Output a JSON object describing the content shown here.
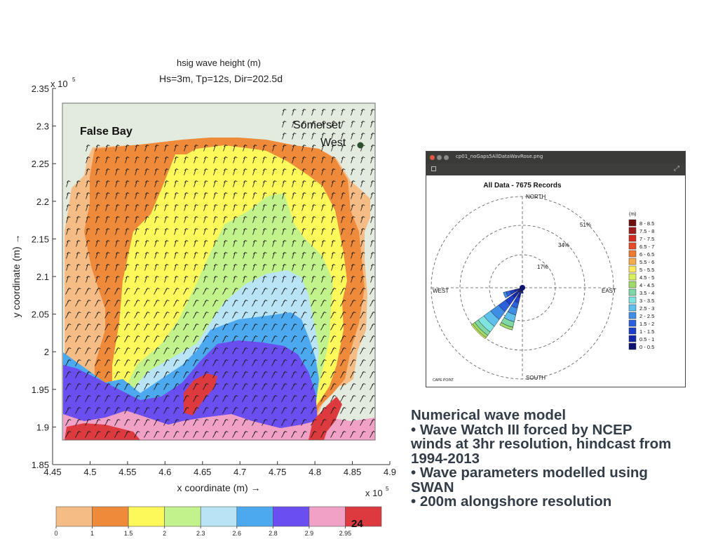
{
  "chart_data": [
    {
      "type": "heatmap",
      "title": "hsig wave height (m)",
      "subtitle": "Hs=3m, Tp=12s, Dir=202.5d",
      "xlabel": "x coordinate (m) →",
      "ylabel": "y coordinate (m) →",
      "x_multiplier": "x 10",
      "x_multiplier_exp": "5",
      "y_multiplier": "x 10",
      "y_multiplier_exp": "5",
      "xlim": [
        4.46,
        4.9
      ],
      "ylim": [
        1.85,
        2.35
      ],
      "x_ticks": [
        "4.45",
        "4.5",
        "4.55",
        "4.6",
        "4.65",
        "4.7",
        "4.75",
        "4.8",
        "4.85",
        "4.9"
      ],
      "y_ticks": [
        "2.35",
        "2.3",
        "2.25",
        "2.2",
        "2.15",
        "2.1",
        "2.05",
        "2",
        "1.95",
        "1.9",
        "1.85"
      ],
      "annotations": {
        "bay": "False Bay",
        "town_line1": "Somerset",
        "town_line2": "West"
      },
      "colorbar": {
        "labels": [
          "0",
          "1",
          "1.5",
          "2",
          "2.3",
          "2.6",
          "2.8",
          "2.9",
          "2.95"
        ],
        "overlay_text": "24",
        "colors": [
          "#f5bd85",
          "#ee8a3a",
          "#fef95a",
          "#c2f28c",
          "#b8e4f6",
          "#4ca9ef",
          "#6a4ef0",
          "#f1a1c5",
          "#dc3a3f"
        ]
      },
      "colors": {
        "land": "#e3ebdf",
        "band_1": "#f5bd85",
        "band_1_5": "#ee8a3a",
        "band_2": "#fef95a",
        "band_2_3": "#c2f28c",
        "band_2_6": "#b8e4f6",
        "band_2_8": "#4ca9ef",
        "band_2_9": "#6a4ef0",
        "band_2_95": "#f1a1c5",
        "band_max": "#dc3a3f"
      }
    },
    {
      "type": "rose",
      "title": "All Data - 7675 Records",
      "north": "NORTH",
      "south": "SOUTH",
      "east": "EAST",
      "west": "WEST",
      "ring_labels": [
        "17%",
        "34%",
        "51%"
      ],
      "site_label": "CAPE POINT",
      "legend_title": "(m)",
      "legend": [
        {
          "label": "8 - 8.5",
          "color": "#6e0f10"
        },
        {
          "label": "7.5 - 8",
          "color": "#a11c1c"
        },
        {
          "label": "7 - 7.5",
          "color": "#d42a22"
        },
        {
          "label": "6.5 - 7",
          "color": "#e84a2a"
        },
        {
          "label": "6 - 6.5",
          "color": "#ef7b31"
        },
        {
          "label": "5.5 - 6",
          "color": "#f4ac4d"
        },
        {
          "label": "5 - 5.5",
          "color": "#fde860"
        },
        {
          "label": "4.5 - 5",
          "color": "#d8ef5e"
        },
        {
          "label": "4 - 4.5",
          "color": "#9fdb6a"
        },
        {
          "label": "3.5 - 4",
          "color": "#7fd7a8"
        },
        {
          "label": "3 - 3.5",
          "color": "#7fe3e0"
        },
        {
          "label": "2.5 - 3",
          "color": "#5fc0ee"
        },
        {
          "label": "2 - 2.5",
          "color": "#3e8ee6"
        },
        {
          "label": "1.5 - 2",
          "color": "#2c5fdc"
        },
        {
          "label": "1 - 1.5",
          "color": "#1d3ec9"
        },
        {
          "label": "0.5 - 1",
          "color": "#1526a8"
        },
        {
          "label": "0 - 0.5",
          "color": "#0c1370"
        }
      ]
    }
  ],
  "window": {
    "title": "cp01_noGaps5AllDataWavRose.png"
  },
  "caption": {
    "line1": "Numerical wave model",
    "line2": "• Wave Watch III forced by NCEP",
    "line3": "winds at 3hr resolution, hindcast from",
    "line4": "1994-2013",
    "line5": "• Wave parameters modelled using",
    "line6": "SWAN",
    "line7": "• 200m alongshore resolution"
  }
}
